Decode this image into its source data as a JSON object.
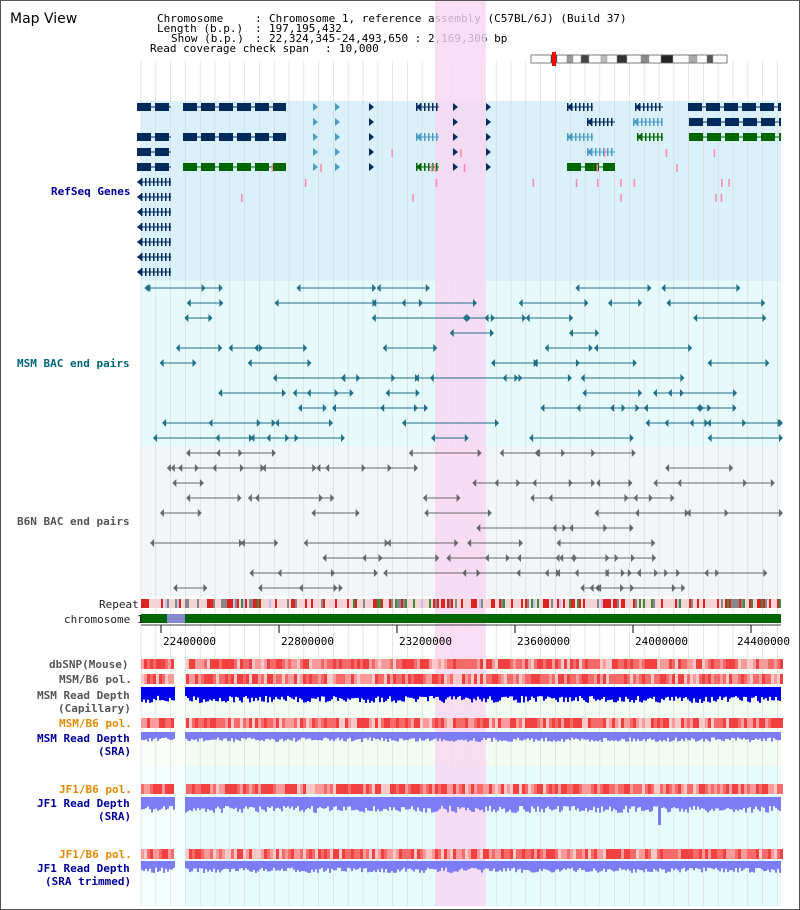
{
  "page": {
    "title": "Map View"
  },
  "header": {
    "chromosome_label": "Chromosome",
    "chromosome_value": "Chromosome 1, reference assembly (C57BL/6J) (Build 37)",
    "length_label": "Length (b.p.)",
    "length_value": "197,195,432",
    "show_label": "Show (b.p.)",
    "show_value": "22,324,345-24,493,650 : 2,169,306 bp",
    "coverage_label": "Read coverage check span",
    "coverage_value": "10,000"
  },
  "tracks": {
    "refseq": "RefSeq Genes",
    "msm_bac": "MSM BAC end pairs",
    "b6n_bac": "B6N BAC end pairs",
    "repeat": "Repeat",
    "chromosome": "chromosome 1",
    "dbsnp": "dbSNP(Mouse)",
    "msm_b6_pol_1": "MSM/B6 pol.",
    "msm_read_depth_cap_1": "MSM Read Depth",
    "msm_read_depth_cap_2": "(Capillary)",
    "msm_b6_pol_2": "MSM/B6 pol.",
    "msm_read_depth_sra_1": "MSM Read Depth",
    "msm_read_depth_sra_2": "(SRA)",
    "jf1_b6_pol_1": "JF1/B6 pol.",
    "jf1_read_depth_1": "JF1 Read Depth",
    "jf1_read_depth_2": "(SRA)",
    "jf1_b6_pol_2": "JF1/B6 pol.",
    "jf1_read_depth_trim_1": "JF1 Read Depth",
    "jf1_read_depth_trim_2": "(SRA trimmed)"
  },
  "axis": {
    "ticks": [
      "22400000",
      "22800000",
      "23200000",
      "23600000",
      "24000000",
      "24400000"
    ]
  },
  "colors": {
    "refseq_bg": "#daf0fa",
    "msm_bg": "#e6fafc",
    "b6n_bg": "#f2f6f8",
    "highlight": "#f9d6f2",
    "gene_dark": "#002a5c",
    "gene_mid": "#4a9cc4",
    "gene_green": "#006600",
    "depth_blue": "#0000ee",
    "depth_light": "#7c7cf4",
    "pol_red": "#ee3333"
  }
}
